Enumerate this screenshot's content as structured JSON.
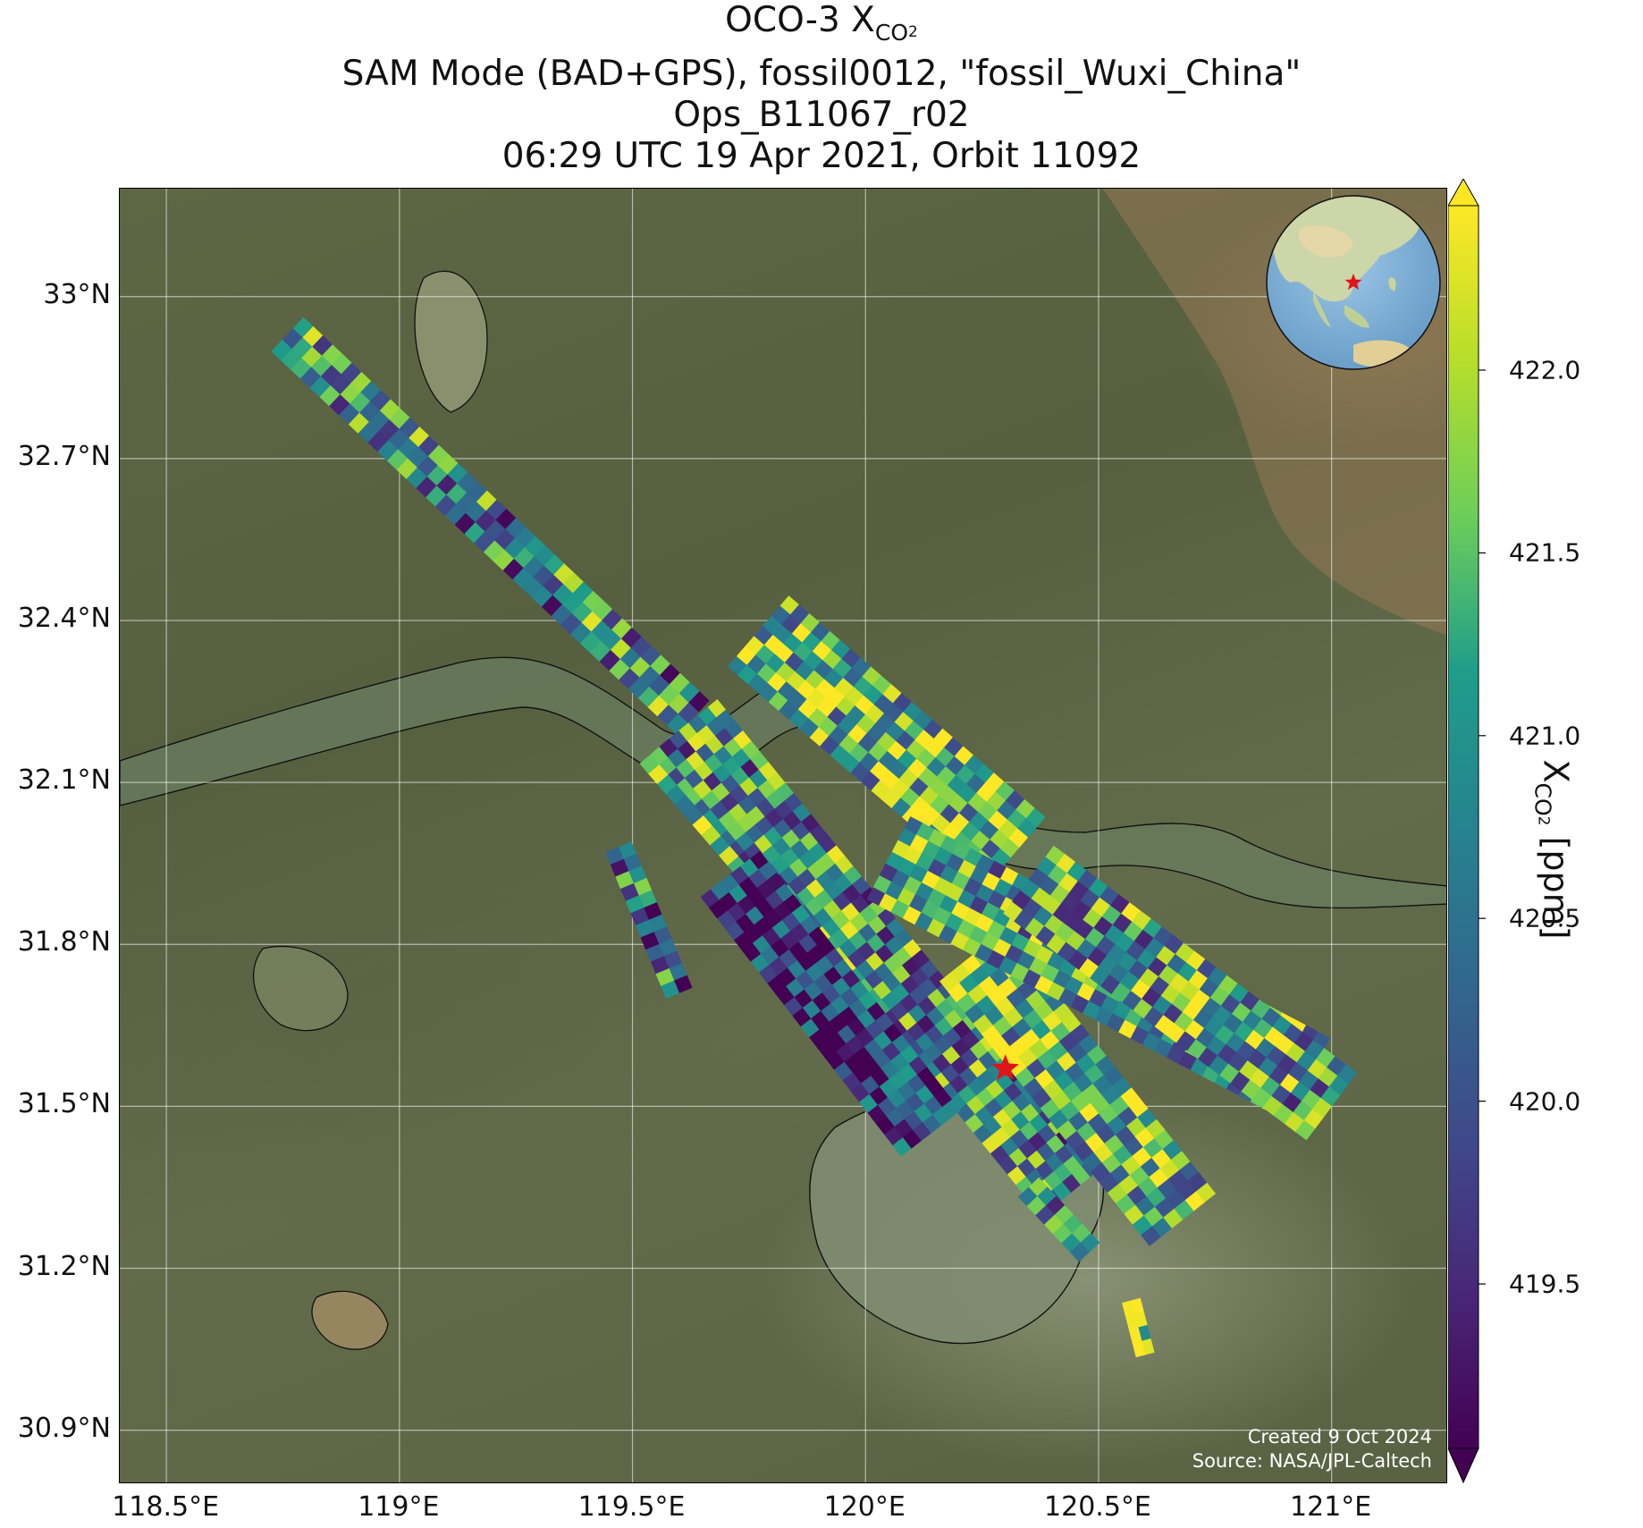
{
  "title": {
    "line1_main": "OCO-3 X",
    "line1_sub": "CO",
    "line1_subsub": "2",
    "line2": "SAM Mode (BAD+GPS), fossil0012, \"fossil_Wuxi_China\"",
    "line3": "Ops_B11067_r02",
    "line4": "06:29 UTC 19 Apr 2021, Orbit 11092"
  },
  "credit": {
    "created": "Created 9 Oct 2024",
    "source": "Source: NASA/JPL-Caltech"
  },
  "colorbar": {
    "label_main": "X",
    "label_sub": "CO",
    "label_subsub": "2",
    "label_unit": " [ppm]",
    "colormap": "viridis",
    "range": [
      419.05,
      422.45
    ],
    "extend": "both",
    "ticks": [
      "419.5",
      "420.0",
      "420.5",
      "421.0",
      "421.5",
      "422.0"
    ],
    "colors": [
      "#440154",
      "#482777",
      "#3f4a8a",
      "#31678e",
      "#26838f",
      "#1f9d8a",
      "#6cce5a",
      "#b6de2b",
      "#fee825"
    ]
  },
  "chart_data": {
    "type": "heatmap",
    "projection": "PlateCarree",
    "basemap": "satellite imagery",
    "x_unit": "degrees longitude",
    "y_unit": "degrees latitude",
    "xlim": [
      118.4,
      121.25
    ],
    "ylim": [
      30.8,
      33.2
    ],
    "xticks": [
      118.5,
      119.0,
      119.5,
      120.0,
      120.5,
      121.0
    ],
    "xtick_labels": [
      "118.5°E",
      "119°E",
      "119.5°E",
      "120°E",
      "120.5°E",
      "121°E"
    ],
    "yticks": [
      30.9,
      31.2,
      31.5,
      31.8,
      32.1,
      32.4,
      32.7,
      33.0
    ],
    "ytick_labels": [
      "30.9°N",
      "31.2°N",
      "31.5°N",
      "31.8°N",
      "32.1°N",
      "32.4°N",
      "32.7°N",
      "33°N"
    ],
    "grid": true,
    "target_marker": {
      "lon": 120.3,
      "lat": 31.57,
      "symbol": "red star"
    },
    "swaths": [
      {
        "lon_start": 118.76,
        "lat_start": 32.93,
        "lon_end": 119.63,
        "lat_end": 32.22,
        "width_deg": 0.1,
        "mean_ppm": 420.7
      },
      {
        "lon_start": 119.55,
        "lat_start": 32.16,
        "lon_end": 120.06,
        "lat_end": 31.65,
        "width_deg": 0.09,
        "mean_ppm": 421.0
      },
      {
        "lon_start": 119.62,
        "lat_start": 32.21,
        "lon_end": 120.44,
        "lat_end": 31.34,
        "width_deg": 0.16,
        "mean_ppm": 420.8
      },
      {
        "lon_start": 119.71,
        "lat_start": 31.93,
        "lon_end": 120.14,
        "lat_end": 31.45,
        "width_deg": 0.16,
        "mean_ppm": 419.6
      },
      {
        "lon_start": 119.47,
        "lat_start": 31.98,
        "lon_end": 119.6,
        "lat_end": 31.71,
        "width_deg": 0.06,
        "mean_ppm": 420.4
      },
      {
        "lon_start": 120.23,
        "lat_start": 31.78,
        "lon_end": 120.68,
        "lat_end": 31.29,
        "width_deg": 0.18,
        "mean_ppm": 421.4
      },
      {
        "lon_start": 119.77,
        "lat_start": 32.38,
        "lon_end": 120.32,
        "lat_end": 31.97,
        "width_deg": 0.2,
        "mean_ppm": 421.4
      },
      {
        "lon_start": 120.05,
        "lat_start": 31.96,
        "lon_end": 120.95,
        "lat_end": 31.55,
        "width_deg": 0.2,
        "mean_ppm": 421.2
      },
      {
        "lon_start": 120.35,
        "lat_start": 31.92,
        "lon_end": 121.0,
        "lat_end": 31.5,
        "width_deg": 0.18,
        "mean_ppm": 421.0
      },
      {
        "lon_start": 120.35,
        "lat_start": 31.35,
        "lon_end": 120.48,
        "lat_end": 31.23,
        "width_deg": 0.06,
        "mean_ppm": 421.0
      },
      {
        "lon_start": 120.57,
        "lat_start": 31.14,
        "lon_end": 120.6,
        "lat_end": 31.04,
        "width_deg": 0.04,
        "mean_ppm": 421.5
      }
    ]
  }
}
